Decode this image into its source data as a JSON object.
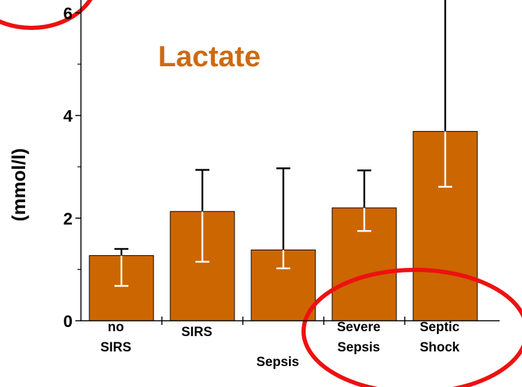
{
  "chart_data": {
    "type": "bar",
    "title": "Lactate",
    "ylabel": "(mmol/l)",
    "categories": [
      "no\nSIRS",
      "SIRS",
      "Sepsis",
      "Severe\nSepsis",
      "Septic\nShock"
    ],
    "values": [
      1.27,
      2.13,
      1.38,
      2.2,
      3.69
    ],
    "lower": [
      0.68,
      1.15,
      1.02,
      1.75,
      2.61
    ],
    "upper": [
      1.4,
      2.94,
      2.97,
      2.93,
      6.5
    ],
    "color": "#cc6600",
    "ylim": [
      0,
      6.25
    ],
    "yticks": [
      0,
      2,
      4,
      6
    ],
    "yminor_ticks": [
      1,
      3,
      5
    ]
  }
}
